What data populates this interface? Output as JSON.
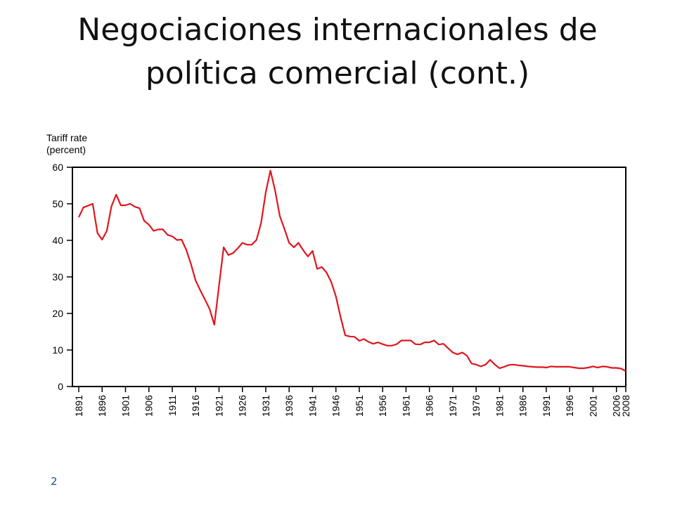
{
  "slide": {
    "title_line1": "Negociaciones internacionales de",
    "title_line2": "política comercial (cont.)",
    "page_number": "2"
  },
  "chart_data": {
    "type": "line",
    "ylabel_line1": "Tariff rate",
    "ylabel_line2": "(percent)",
    "ylim": [
      0,
      60
    ],
    "xlim": [
      1891,
      2008
    ],
    "yticks": [
      0,
      10,
      20,
      30,
      40,
      50,
      60
    ],
    "xticks": [
      1891,
      1896,
      1901,
      1906,
      1911,
      1916,
      1921,
      1926,
      1931,
      1936,
      1941,
      1946,
      1951,
      1956,
      1961,
      1966,
      1971,
      1976,
      1981,
      1986,
      1991,
      1996,
      2001,
      2006,
      2008
    ],
    "grid": false,
    "line_color": "#e0161e",
    "x": [
      1891,
      1892,
      1893,
      1894,
      1895,
      1896,
      1897,
      1898,
      1899,
      1900,
      1901,
      1902,
      1903,
      1904,
      1905,
      1906,
      1907,
      1908,
      1909,
      1910,
      1911,
      1912,
      1913,
      1914,
      1915,
      1916,
      1917,
      1918,
      1919,
      1920,
      1921,
      1922,
      1923,
      1924,
      1925,
      1926,
      1927,
      1928,
      1929,
      1930,
      1931,
      1932,
      1933,
      1934,
      1935,
      1936,
      1937,
      1938,
      1939,
      1940,
      1941,
      1942,
      1943,
      1944,
      1945,
      1946,
      1947,
      1948,
      1949,
      1950,
      1951,
      1952,
      1953,
      1954,
      1955,
      1956,
      1957,
      1958,
      1959,
      1960,
      1961,
      1962,
      1963,
      1964,
      1965,
      1966,
      1967,
      1968,
      1969,
      1970,
      1971,
      1972,
      1973,
      1974,
      1975,
      1976,
      1977,
      1978,
      1979,
      1980,
      1981,
      1982,
      1983,
      1984,
      1985,
      1986,
      1987,
      1988,
      1989,
      1990,
      1991,
      1992,
      1993,
      1994,
      1995,
      1996,
      1997,
      1998,
      1999,
      2000,
      2001,
      2002,
      2003,
      2004,
      2005,
      2006,
      2007,
      2008
    ],
    "y": [
      46.3,
      49.0,
      49.5,
      50.0,
      42.0,
      40.2,
      42.6,
      49.3,
      52.5,
      49.6,
      49.6,
      50.0,
      49.2,
      48.8,
      45.3,
      44.3,
      42.6,
      43.0,
      43.0,
      41.5,
      41.1,
      40.1,
      40.2,
      37.4,
      33.5,
      29.0,
      26.3,
      23.8,
      21.2,
      16.9,
      27.6,
      38.1,
      36.0,
      36.5,
      37.8,
      39.3,
      38.8,
      38.8,
      40.1,
      44.7,
      53.2,
      59.1,
      53.6,
      46.7,
      43.1,
      39.3,
      38.1,
      39.3,
      37.3,
      35.6,
      37.1,
      32.2,
      32.7,
      31.2,
      28.6,
      24.7,
      19.0,
      14.0,
      13.7,
      13.6,
      12.5,
      13.0,
      12.2,
      11.7,
      12.1,
      11.6,
      11.2,
      11.2,
      11.6,
      12.6,
      12.6,
      12.6,
      11.6,
      11.5,
      12.1,
      12.1,
      12.6,
      11.5,
      11.7,
      10.5,
      9.3,
      8.8,
      9.3,
      8.5,
      6.3,
      6.0,
      5.5,
      6.0,
      7.3,
      6.0,
      5.0,
      5.4,
      5.9,
      6.0,
      5.8,
      5.7,
      5.5,
      5.4,
      5.3,
      5.3,
      5.2,
      5.5,
      5.4,
      5.4,
      5.4,
      5.4,
      5.2,
      5.0,
      5.0,
      5.2,
      5.5,
      5.2,
      5.5,
      5.4,
      5.1,
      5.1,
      4.9,
      4.2
    ]
  }
}
